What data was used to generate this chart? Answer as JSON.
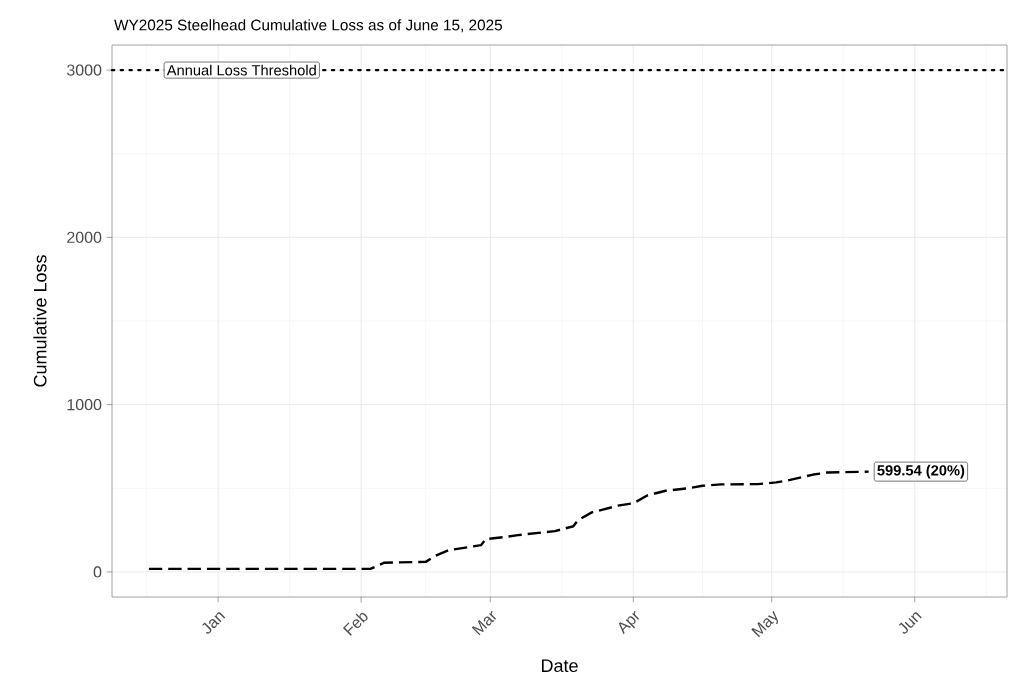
{
  "chart_data": {
    "type": "line",
    "title": "WY2025 Steelhead Cumulative Loss as of June 15, 2025",
    "xlabel": "Date",
    "ylabel": "Cumulative Loss",
    "x": [
      "2024-12-17",
      "2025-02-03",
      "2025-02-06",
      "2025-02-15",
      "2025-02-17",
      "2025-02-20",
      "2025-02-27",
      "2025-02-28",
      "2025-03-04",
      "2025-03-07",
      "2025-03-15",
      "2025-03-19",
      "2025-03-20",
      "2025-03-23",
      "2025-03-29",
      "2025-04-01",
      "2025-04-04",
      "2025-04-08",
      "2025-04-13",
      "2025-04-16",
      "2025-04-20",
      "2025-04-28",
      "2025-05-02",
      "2025-05-05",
      "2025-05-10",
      "2025-05-13",
      "2025-05-22"
    ],
    "series": [
      {
        "color": "#000000",
        "values": [
          18,
          18,
          55,
          60,
          95,
          130,
          160,
          196,
          208,
          220,
          244,
          273,
          309,
          356,
          398,
          410,
          457,
          485,
          500,
          515,
          523,
          525,
          535,
          550,
          582,
          594,
          599.54
        ]
      }
    ],
    "line_style": "dashed",
    "xlim": [
      "2024-12-09",
      "2025-06-21"
    ],
    "ylim": [
      -150,
      3150
    ],
    "xticks": [
      {
        "value": "2025-01-01",
        "label": "Jan"
      },
      {
        "value": "2025-02-01",
        "label": "Feb"
      },
      {
        "value": "2025-03-01",
        "label": "Mar"
      },
      {
        "value": "2025-04-01",
        "label": "Apr"
      },
      {
        "value": "2025-05-01",
        "label": "May"
      },
      {
        "value": "2025-06-01",
        "label": "Jun"
      }
    ],
    "yticks": [
      0,
      1000,
      2000,
      3000
    ],
    "grid": true,
    "ref_lines": [
      {
        "axis": "y",
        "value": 3000,
        "label": "Annual Loss Threshold",
        "color": "#000000",
        "line_style": "dotted"
      }
    ],
    "annotations": [
      "599.54 (20%)"
    ]
  }
}
